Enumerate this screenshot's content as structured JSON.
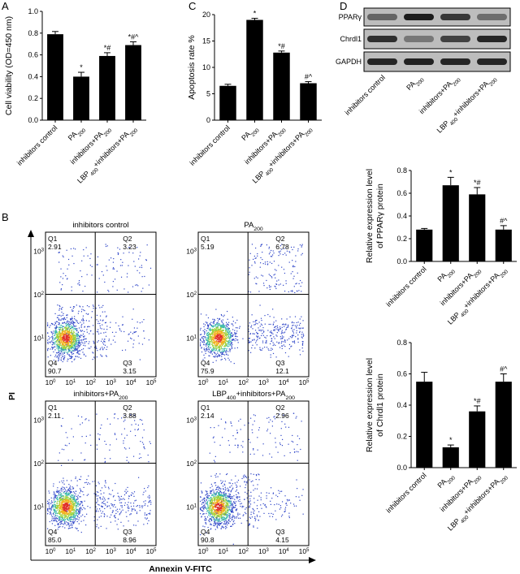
{
  "panels": {
    "A": "A",
    "B": "B",
    "C": "C",
    "D": "D"
  },
  "chart_data": [
    {
      "id": "A",
      "type": "bar",
      "ylabel": "Cell viability (OD=450 nm)",
      "ylim": [
        0,
        1.0
      ],
      "yticks": [
        "0.0",
        "0.2",
        "0.4",
        "0.6",
        "0.8",
        "1.0"
      ],
      "categories": [
        "inhibitors control",
        "PA200",
        "inhibitors+PA200",
        "LBP400+inhibitors+PA200"
      ],
      "values": [
        0.79,
        0.4,
        0.59,
        0.69
      ],
      "errors": [
        0.025,
        0.04,
        0.03,
        0.03
      ],
      "annotations": [
        "",
        "*",
        "*#",
        "*#^"
      ]
    },
    {
      "id": "C",
      "type": "bar",
      "ylabel": "Apoptosis rate %",
      "ylim": [
        0,
        20
      ],
      "yticks": [
        "0",
        "5",
        "10",
        "15",
        "20"
      ],
      "categories": [
        "inhibitors control",
        "PA200",
        "inhibitors+PA200",
        "LBP400+inhibitors+PA200"
      ],
      "values": [
        6.5,
        19.0,
        12.8,
        7.0
      ],
      "errors": [
        0.3,
        0.3,
        0.3,
        0.3
      ],
      "annotations": [
        "",
        "*",
        "*#",
        "#^"
      ]
    },
    {
      "id": "D1",
      "type": "bar",
      "ylabel_lines": [
        "Relative expression level",
        "of PPARγ protein"
      ],
      "ylim": [
        0,
        0.8
      ],
      "yticks": [
        "0.0",
        "0.2",
        "0.4",
        "0.6",
        "0.8"
      ],
      "categories": [
        "inhibitors control",
        "PA200",
        "inhibitors+PA200",
        "LBP400+inhibitors+PA200"
      ],
      "values": [
        0.28,
        0.67,
        0.59,
        0.28
      ],
      "errors": [
        0.01,
        0.07,
        0.06,
        0.035
      ],
      "annotations": [
        "",
        "*",
        "*#",
        "#^"
      ]
    },
    {
      "id": "D2",
      "type": "bar",
      "ylabel_lines": [
        "Relative expression level",
        "of Chrdl1 protein"
      ],
      "ylim": [
        0,
        0.8
      ],
      "yticks": [
        "0.0",
        "0.2",
        "0.4",
        "0.6",
        "0.8"
      ],
      "categories": [
        "inhibitors control",
        "PA200",
        "inhibitors+PA200",
        "LBP400+inhibitors+PA200"
      ],
      "values": [
        0.55,
        0.13,
        0.36,
        0.55
      ],
      "errors": [
        0.06,
        0.015,
        0.035,
        0.05
      ],
      "annotations": [
        "",
        "*",
        "*#",
        "#^"
      ]
    }
  ],
  "flow": {
    "ylabel": "PI",
    "xlabel": "Annexin V-FITC",
    "axis_ticks": [
      "10",
      "10",
      "10",
      "10",
      "10",
      "10"
    ],
    "axis_exps": [
      "0",
      "1",
      "2",
      "3",
      "4",
      "5"
    ],
    "plots": [
      {
        "title": "inhibitors control",
        "q1": "2.91",
        "q2": "3.23",
        "q3": "3.15",
        "q4": "90.7"
      },
      {
        "title": "PA200",
        "q1": "5.19",
        "q2": "6.78",
        "q3": "12.1",
        "q4": "75.9"
      },
      {
        "title": "inhibitors+PA200",
        "q1": "2.11",
        "q2": "3.88",
        "q3": "8.96",
        "q4": "85.0"
      },
      {
        "title": "LBP400+inhibitors+PA200",
        "q1": "2.14",
        "q2": "2.96",
        "q3": "4.15",
        "q4": "90.8"
      }
    ],
    "quadrant_names": [
      "Q1",
      "Q2",
      "Q3",
      "Q4"
    ]
  },
  "blot": {
    "labels": [
      "PPARγ",
      "Chrdl1",
      "GAPDH"
    ],
    "lanes": [
      "inhibitors control",
      "PA200",
      "inhibitors+PA200",
      "LBP400+inhibitors+PA200"
    ]
  }
}
